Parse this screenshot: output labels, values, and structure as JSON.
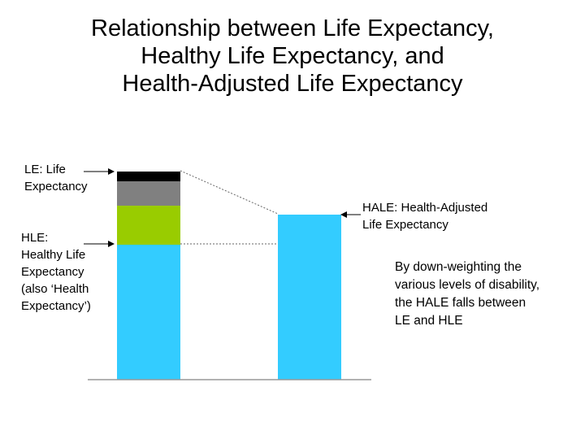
{
  "title": {
    "line1": "Relationship between Life Expectancy,",
    "line2": "Healthy Life Expectancy, and",
    "line3": "Health-Adjusted Life Expectancy"
  },
  "labels": {
    "le": [
      "LE: Life",
      "Expectancy"
    ],
    "hle": [
      "HLE:",
      "Healthy Life",
      "Expectancy",
      "(also ‘Health",
      "Expectancy’)"
    ],
    "hale": [
      "HALE: Health-Adjusted",
      "Life Expectancy"
    ]
  },
  "note": [
    "By down-weighting the",
    "various levels of disability,",
    "the HALE falls between",
    "LE and HLE"
  ],
  "colors": {
    "healthy": "#33ccff",
    "mild_disability": "#99cc00",
    "moderate_disability": "#808080",
    "severe_disability": "#000000",
    "hale": "#33ccff",
    "axis": "#999999"
  },
  "chart_data": {
    "type": "bar",
    "stacked": true,
    "categories": [
      "",
      ""
    ],
    "series": [
      {
        "values": [
          166,
          203
        ],
        "color": "#33ccff"
      },
      {
        "values": [
          48,
          0
        ],
        "color": "#99cc00"
      },
      {
        "values": [
          30,
          0
        ],
        "color": "#808080"
      },
      {
        "values": [
          12,
          0
        ],
        "color": "#000000"
      }
    ],
    "ylim": [
      0,
      256
    ],
    "xlabel": "",
    "ylabel": "",
    "grid": false
  }
}
